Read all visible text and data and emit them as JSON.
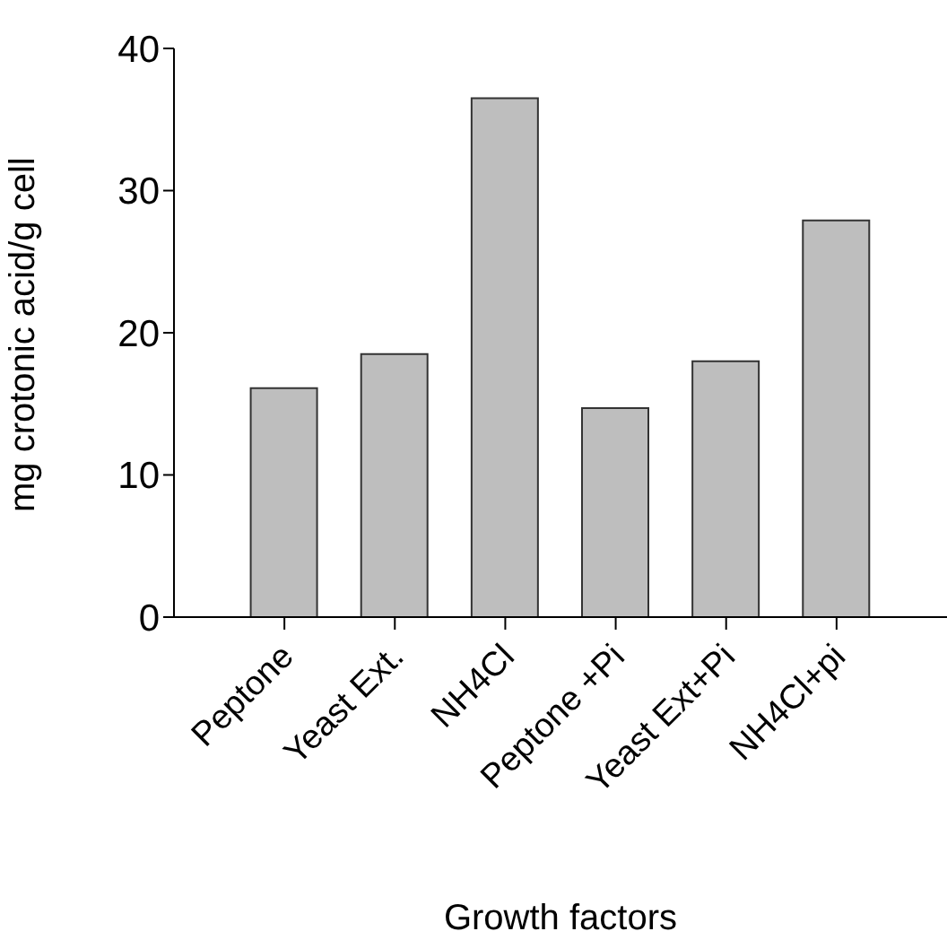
{
  "chart_data": {
    "type": "bar",
    "xlabel": "Growth factors",
    "ylabel": "mg crotonic acid/g cell",
    "categories": [
      "Peptone",
      "Yeast Ext.",
      "NH4Cl",
      "Peptone +Pi",
      "Yeast Ext+Pi",
      "NH4Cl+pi"
    ],
    "values": [
      16.1,
      18.5,
      36.5,
      14.7,
      18.0,
      27.9
    ],
    "color": "#bebebe",
    "ylim": [
      0,
      40
    ],
    "yticks": [
      0,
      10,
      20,
      30,
      40
    ],
    "grid": false,
    "legend": false
  }
}
